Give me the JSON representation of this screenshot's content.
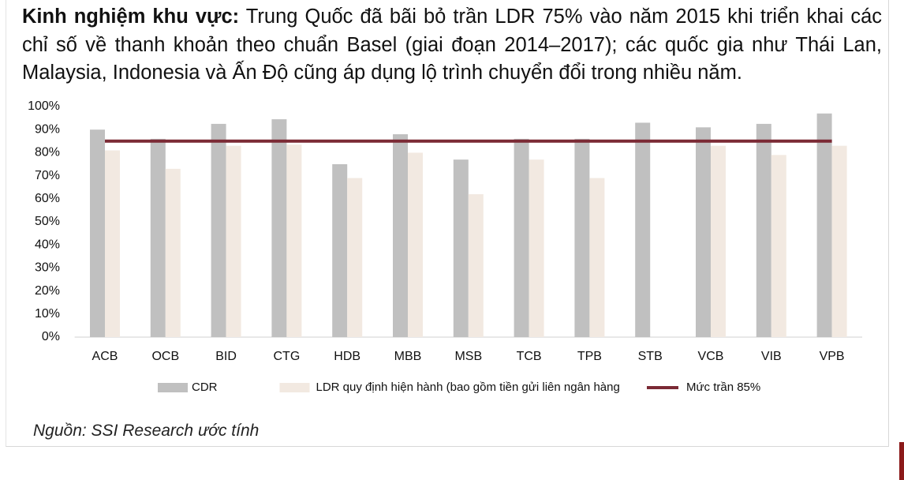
{
  "paragraph": {
    "label": "Kinh nghiệm khu vực:",
    "text": "Trung Quốc đã bãi bỏ trần LDR 75% vào năm 2015 khi triển khai các chỉ số về thanh khoản theo chuẩn Basel (giai đoạn 2014–2017); các quốc gia như Thái Lan, Malaysia, Indonesia và Ấn Độ cũng áp dụng lộ trình chuyển đổi trong nhiều năm."
  },
  "chart_data": {
    "type": "bar",
    "categories": [
      "ACB",
      "OCB",
      "BID",
      "CTG",
      "HDB",
      "MBB",
      "MSB",
      "TCB",
      "TPB",
      "STB",
      "VCB",
      "VIB",
      "VPB"
    ],
    "series": [
      {
        "name": "CDR",
        "color": "#c0c0c0",
        "values": [
          90,
          86,
          92.5,
          94.5,
          75,
          88,
          77,
          86,
          86,
          93,
          91,
          92.5,
          97
        ]
      },
      {
        "name": "LDR quy định hiện hành (bao gồm tiền gửi liên ngân hàng",
        "color": "#f2e9e1",
        "values": [
          81,
          73,
          83,
          83.5,
          69,
          80,
          62,
          77,
          69,
          null,
          83,
          79,
          83
        ]
      }
    ],
    "reference_line": {
      "name": "Mức trần 85%",
      "value": 85,
      "color": "#7b2a35"
    },
    "ylim": [
      0,
      100
    ],
    "yticks": [
      {
        "value": 0,
        "label": "0%"
      },
      {
        "value": 10,
        "label": "10%"
      },
      {
        "value": 20,
        "label": "20%"
      },
      {
        "value": 30,
        "label": "30%"
      },
      {
        "value": 40,
        "label": "40%"
      },
      {
        "value": 50,
        "label": "50%"
      },
      {
        "value": 60,
        "label": "60%"
      },
      {
        "value": 70,
        "label": "70%"
      },
      {
        "value": 80,
        "label": "80%"
      },
      {
        "value": 90,
        "label": "90%"
      },
      {
        "value": 100,
        "label": "100%"
      }
    ]
  },
  "source": "Nguồn: SSI Research ước tính"
}
